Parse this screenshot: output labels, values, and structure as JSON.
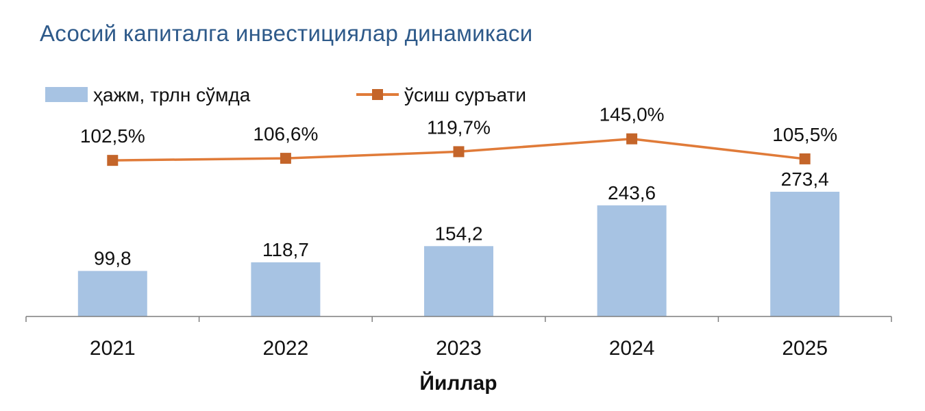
{
  "title": "Асосий капиталга инвестициялар динамикаси",
  "legend": {
    "bar_label": "ҳажм, трлн сўмда",
    "line_label": "ўсиш суръати"
  },
  "colors": {
    "title": "#2e5a8a",
    "bar": "#a7c3e3",
    "line": "#e07b39",
    "marker": "#c4652a",
    "axis": "#7f7f7f",
    "text": "#111111"
  },
  "chart_data": {
    "type": "bar",
    "title": "Асосий капиталга инвестициялар динамикаси",
    "xlabel": "Йиллар",
    "ylabel": "",
    "categories": [
      "2021",
      "2022",
      "2023",
      "2024",
      "2025"
    ],
    "ylim": [
      0,
      300
    ],
    "grid": false,
    "legend_position": "top",
    "series": [
      {
        "name": "ҳажм, трлн сўмда",
        "type": "bar",
        "values": [
          99.8,
          118.7,
          154.2,
          243.6,
          273.4
        ],
        "labels": [
          "99,8",
          "118,7",
          "154,2",
          "243,6",
          "273,4"
        ]
      },
      {
        "name": "ўсиш суръати",
        "type": "line",
        "values": [
          102.5,
          106.6,
          119.7,
          145.0,
          105.5
        ],
        "labels": [
          "102,5%",
          "106,6%",
          "119,7%",
          "145,0%",
          "105,5%"
        ],
        "ylim": [
          0,
          150
        ]
      }
    ]
  }
}
